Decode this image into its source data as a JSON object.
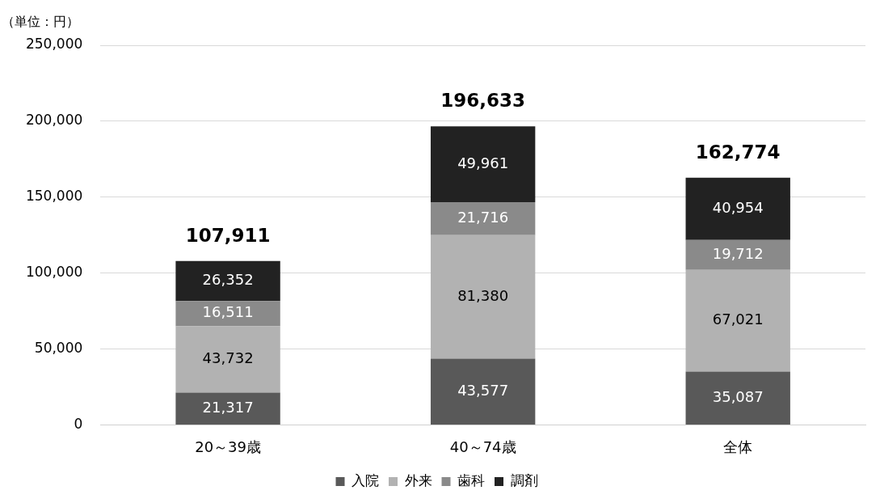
{
  "chart_data": {
    "type": "bar",
    "stacked": true,
    "ylabel": "（単位：円）",
    "categories": [
      "20～39歳",
      "40～74歳",
      "全体"
    ],
    "series": [
      {
        "name": "入院",
        "color": "#595959",
        "values": [
          21317,
          43577,
          35087
        ],
        "value_labels": [
          "21,317",
          "43,577",
          "35,087"
        ]
      },
      {
        "name": "外来",
        "color": "#b2b2b2",
        "values": [
          43732,
          81380,
          67021
        ],
        "value_labels": [
          "43,732",
          "81,380",
          "67,021"
        ]
      },
      {
        "name": "歯科",
        "color": "#8a8a8a",
        "values": [
          16511,
          21716,
          19712
        ],
        "value_labels": [
          "16,511",
          "21,716",
          "19,712"
        ]
      },
      {
        "name": "調剤",
        "color": "#222222",
        "values": [
          26352,
          49961,
          40954
        ],
        "value_labels": [
          "26,352",
          "49,961",
          "40,954"
        ]
      }
    ],
    "totals": [
      "107,911",
      "196,633",
      "162,774"
    ],
    "ylim": [
      0,
      250000
    ],
    "yticks": [
      0,
      {
        "value": 50000,
        "label": "50,000"
      },
      {
        "value": 100000,
        "label": "100,000"
      },
      {
        "value": 150000,
        "label": "150,000"
      },
      {
        "value": 200000,
        "label": "200,000"
      },
      {
        "value": 250000,
        "label": "250,000"
      }
    ],
    "grid": "y",
    "legend": "bottom"
  }
}
